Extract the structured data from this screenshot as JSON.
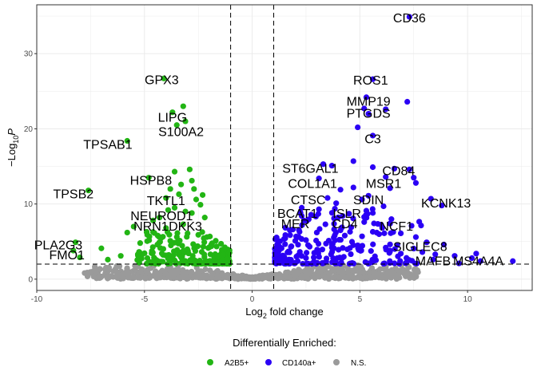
{
  "chart_data": {
    "type": "scatter",
    "title": "",
    "xlabel": {
      "prefix": "Log",
      "sub": "2",
      "suffix": " fold change"
    },
    "ylabel": {
      "minus": "−",
      "prefix": "Log",
      "sub": "10",
      "italic": "P"
    },
    "xlim": [
      -10,
      13
    ],
    "ylim": [
      -1.5,
      36.5
    ],
    "x_ticks": [
      -10,
      -5,
      0,
      5,
      10
    ],
    "y_ticks": [
      0,
      10,
      20,
      30
    ],
    "x_tick_labels": [
      "-10",
      "-5",
      "0",
      "5",
      "10"
    ],
    "y_tick_labels": [
      "0",
      "10",
      "20",
      "30"
    ],
    "grid": true,
    "thresholds": {
      "log2fc": [
        -1,
        1
      ],
      "neg_log10_p": 2
    },
    "legend": {
      "title": "Differentially Enriched:",
      "position": "bottom",
      "entries": [
        {
          "name": "A2B5+",
          "color": "#22b514"
        },
        {
          "name": "CD140a+",
          "color": "#2b00f5"
        },
        {
          "name": "N.S.",
          "color": "#9a9a9a"
        }
      ]
    },
    "series": [
      {
        "name": "A2B5+",
        "color": "#22b514",
        "points": [
          [
            -4.1,
            26.7
          ],
          [
            -3.2,
            23
          ],
          [
            -3.7,
            22.2
          ],
          [
            -3.5,
            20.5
          ],
          [
            -3.1,
            21
          ],
          [
            -5.8,
            18.4
          ],
          [
            -7.6,
            11.8
          ],
          [
            -4.8,
            13.5
          ],
          [
            -3.8,
            12
          ],
          [
            -4,
            10.8
          ],
          [
            -3.4,
            11.3
          ],
          [
            -3.6,
            9.5
          ],
          [
            -3.1,
            9
          ],
          [
            -4.3,
            8.2
          ],
          [
            -3.2,
            7.3
          ],
          [
            -5.5,
            7
          ],
          [
            -5.8,
            6.2
          ],
          [
            -4,
            6.8
          ],
          [
            -2.9,
            14.6
          ],
          [
            -2.8,
            13.1
          ],
          [
            -3.6,
            14.3
          ],
          [
            -3.3,
            12.6
          ],
          [
            -2.7,
            12
          ],
          [
            -2.6,
            10.6
          ],
          [
            -2.4,
            9.9
          ],
          [
            -2.3,
            11.2
          ],
          [
            -2.8,
            8.8
          ],
          [
            -2.2,
            8.2
          ],
          [
            -3.9,
            9.2
          ],
          [
            -4.6,
            7.8
          ],
          [
            -4.9,
            6.3
          ],
          [
            -3,
            6.1
          ],
          [
            -2.5,
            5.9
          ],
          [
            -8.2,
            4.9
          ],
          [
            -8.3,
            3.8
          ],
          [
            -8,
            2.9
          ],
          [
            -7,
            4.1
          ],
          [
            -6.1,
            3.1
          ],
          [
            -6.7,
            2.6
          ],
          [
            -5.2,
            4.8
          ],
          [
            -4.4,
            4.6
          ],
          [
            -3.8,
            5.1
          ],
          [
            -2.1,
            5.6
          ],
          [
            -1.9,
            4.6
          ]
        ]
      },
      {
        "name": "CD140a+",
        "color": "#2b00f5",
        "points": [
          [
            7.3,
            34.9
          ],
          [
            5.6,
            26.6
          ],
          [
            5.3,
            24.2
          ],
          [
            7.2,
            23.6
          ],
          [
            5.2,
            22.7
          ],
          [
            6.2,
            22.6
          ],
          [
            5.4,
            22
          ],
          [
            4.9,
            20.2
          ],
          [
            5.6,
            19.1
          ],
          [
            3.3,
            15.3
          ],
          [
            4.7,
            15.7
          ],
          [
            3.7,
            15.1
          ],
          [
            5.6,
            14.9
          ],
          [
            6.6,
            14.7
          ],
          [
            7.3,
            14.6
          ],
          [
            3.1,
            13.4
          ],
          [
            6.2,
            13.6
          ],
          [
            7.5,
            13.5
          ],
          [
            7.6,
            12.8
          ],
          [
            4.1,
            11.9
          ],
          [
            5.4,
            11.1
          ],
          [
            6.4,
            12.1
          ],
          [
            4.7,
            12.2
          ],
          [
            3.5,
            10.8
          ],
          [
            3.9,
            10.1
          ],
          [
            5.1,
            10.6
          ],
          [
            8.3,
            10.7
          ],
          [
            6.1,
            9.7
          ],
          [
            2.3,
            9.5
          ],
          [
            3.1,
            9.3
          ],
          [
            4.2,
            8.4
          ],
          [
            5.3,
            9.1
          ],
          [
            8.8,
            9.8
          ],
          [
            2.4,
            7.8
          ],
          [
            3.4,
            7.3
          ],
          [
            4.1,
            6.5
          ],
          [
            5.2,
            7.6
          ],
          [
            6.4,
            7.4
          ],
          [
            7.4,
            7.1
          ],
          [
            3,
            6.2
          ],
          [
            5.6,
            6.3
          ],
          [
            6.9,
            6.1
          ],
          [
            7.6,
            5.6
          ],
          [
            4.3,
            5.8
          ],
          [
            8.1,
            4.9
          ],
          [
            8.9,
            4.6
          ],
          [
            7.9,
            3.6
          ],
          [
            8.5,
            3.3
          ],
          [
            8.4,
            2.6
          ],
          [
            10.4,
            3.4
          ],
          [
            10.2,
            2.8
          ],
          [
            10.6,
            2.4
          ],
          [
            12.1,
            2.4
          ],
          [
            9.6,
            2.1
          ],
          [
            2,
            5.1
          ],
          [
            1.8,
            4.3
          ],
          [
            2.5,
            5.2
          ],
          [
            3.7,
            4.2
          ],
          [
            4.9,
            4.5
          ],
          [
            6.2,
            4.2
          ],
          [
            6.9,
            3.4
          ],
          [
            2.2,
            6.3
          ],
          [
            3.8,
            8.1
          ],
          [
            4.6,
            6.9
          ],
          [
            9.4,
            3.1
          ]
        ]
      }
    ],
    "labels": [
      {
        "text": "CD36",
        "x": 7.3,
        "y": 34.8
      },
      {
        "text": "GPX3",
        "x": -4.2,
        "y": 26.6
      },
      {
        "text": "ROS1",
        "x": 5.5,
        "y": 26.5
      },
      {
        "text": "MMP19",
        "x": 5.4,
        "y": 23.7
      },
      {
        "text": "PTGDS",
        "x": 5.4,
        "y": 22.1
      },
      {
        "text": "LIPG",
        "x": -3.7,
        "y": 21.6
      },
      {
        "text": "S100A2",
        "x": -3.3,
        "y": 19.7
      },
      {
        "text": "C3",
        "x": 5.6,
        "y": 18.7
      },
      {
        "text": "TPSAB1",
        "x": -6.7,
        "y": 18.0
      },
      {
        "text": "ST6GAL1",
        "x": 2.7,
        "y": 14.8
      },
      {
        "text": "CD84",
        "x": 6.8,
        "y": 14.5
      },
      {
        "text": "HSPB8",
        "x": -4.7,
        "y": 13.2
      },
      {
        "text": "COL1A1",
        "x": 2.8,
        "y": 12.8
      },
      {
        "text": "MSR1",
        "x": 6.1,
        "y": 12.8
      },
      {
        "text": "TPSB2",
        "x": -8.3,
        "y": 11.4
      },
      {
        "text": "CTSC",
        "x": 2.6,
        "y": 10.6
      },
      {
        "text": "SDIN",
        "x": 5.4,
        "y": 10.6
      },
      {
        "text": "TKTL1",
        "x": -4.0,
        "y": 10.5
      },
      {
        "text": "KCNK13",
        "x": 9.0,
        "y": 10.2
      },
      {
        "text": "BCAT1",
        "x": 2.1,
        "y": 8.8
      },
      {
        "text": "ISLR",
        "x": 4.4,
        "y": 8.8
      },
      {
        "text": "NEUROD1",
        "x": -4.2,
        "y": 8.5
      },
      {
        "text": "MER",
        "x": 2.0,
        "y": 7.4
      },
      {
        "text": "CD4",
        "x": 4.3,
        "y": 7.4
      },
      {
        "text": "NCF1",
        "x": 6.7,
        "y": 7.1
      },
      {
        "text": "NRN1",
        "x": -4.7,
        "y": 7.1
      },
      {
        "text": "DKK3",
        "x": -3.1,
        "y": 7.1
      },
      {
        "text": "PLA2G3",
        "x": -9.0,
        "y": 4.6
      },
      {
        "text": "SIGLEC8",
        "x": 7.8,
        "y": 4.4
      },
      {
        "text": "FMO1",
        "x": -8.6,
        "y": 3.3
      },
      {
        "text": "MAFB",
        "x": 8.4,
        "y": 2.5
      },
      {
        "text": "MS4A4A",
        "x": 10.5,
        "y": 2.5
      }
    ]
  }
}
